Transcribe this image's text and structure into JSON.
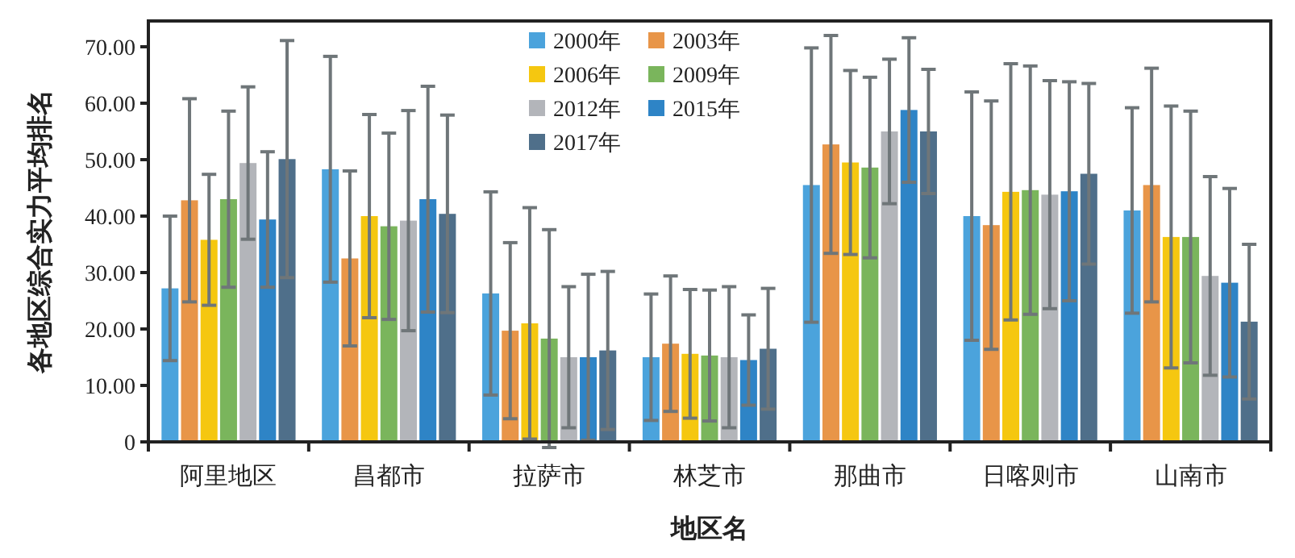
{
  "chart_data": {
    "type": "bar",
    "xlabel": "地区名",
    "ylabel": "各地区综合实力平均排名",
    "categories": [
      "阿里地区",
      "昌都市",
      "拉萨市",
      "林芝市",
      "那曲市",
      "日喀则市",
      "山南市"
    ],
    "ylim": [
      0,
      70
    ],
    "yticks": [
      {
        "value": 0,
        "label": "0"
      },
      {
        "value": 10,
        "label": "10.00"
      },
      {
        "value": 20,
        "label": "20.00"
      },
      {
        "value": 30,
        "label": "30.00"
      },
      {
        "value": 40,
        "label": "40.00"
      },
      {
        "value": 50,
        "label": "50.00"
      },
      {
        "value": 60,
        "label": "60.00"
      },
      {
        "value": 70,
        "label": "70.00"
      }
    ],
    "legend": "top",
    "series": [
      {
        "name": "2000年",
        "color": "#4ba3dc",
        "values": [
          27.2,
          48.3,
          26.3,
          15.0,
          45.5,
          40.0,
          41.0
        ],
        "errors": [
          12.8,
          20.0,
          18.0,
          11.2,
          24.3,
          22.0,
          18.2
        ]
      },
      {
        "name": "2003年",
        "color": "#e89548",
        "values": [
          42.8,
          32.5,
          19.7,
          17.4,
          52.7,
          38.4,
          45.5
        ],
        "errors": [
          18.0,
          15.5,
          15.6,
          12.0,
          19.3,
          22.0,
          20.7
        ]
      },
      {
        "name": "2006年",
        "color": "#f5c710",
        "values": [
          35.8,
          40.0,
          21.0,
          15.6,
          49.5,
          44.3,
          36.3
        ],
        "errors": [
          11.6,
          18.0,
          20.5,
          11.4,
          16.3,
          22.7,
          23.2
        ]
      },
      {
        "name": "2009年",
        "color": "#7ab55c",
        "values": [
          43.0,
          38.2,
          18.3,
          15.3,
          48.6,
          44.6,
          36.3
        ],
        "errors": [
          15.6,
          16.5,
          19.3,
          11.6,
          16.0,
          22.0,
          22.3
        ]
      },
      {
        "name": "2012年",
        "color": "#b3b5ba",
        "values": [
          49.4,
          39.2,
          15.0,
          15.0,
          55.0,
          43.8,
          29.4
        ],
        "errors": [
          13.5,
          19.5,
          12.5,
          12.5,
          12.8,
          20.2,
          17.6
        ]
      },
      {
        "name": "2015年",
        "color": "#2e84c6",
        "values": [
          39.4,
          43.0,
          15.0,
          14.5,
          58.8,
          44.4,
          28.2
        ],
        "errors": [
          12.0,
          20.0,
          14.7,
          8.0,
          12.8,
          19.4,
          16.7
        ]
      },
      {
        "name": "2017年",
        "color": "#4f6f8a",
        "values": [
          50.1,
          40.4,
          16.2,
          16.5,
          55.0,
          47.5,
          21.3
        ],
        "errors": [
          21.0,
          17.5,
          14.0,
          10.7,
          11.0,
          16.0,
          13.7
        ]
      }
    ]
  }
}
